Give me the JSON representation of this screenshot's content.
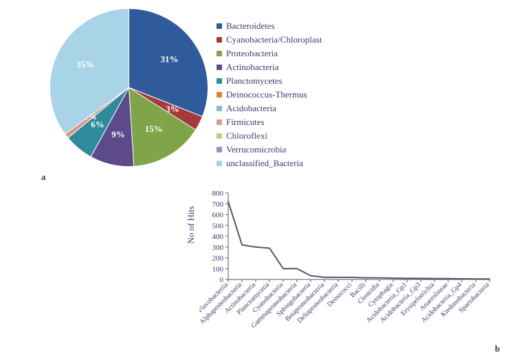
{
  "palette": {
    "text": "#3a3a6a",
    "background": "#ffffff",
    "axis": "#555566"
  },
  "panels": {
    "a": "a",
    "b": "b"
  },
  "pie": {
    "type": "pie",
    "center_label_font": 13,
    "label_color": "#ffffff",
    "slices": [
      {
        "name": "Bacteroidetes",
        "value": 31,
        "label": "31%",
        "color": "#2f5b9c"
      },
      {
        "name": "Cyanobacteria/Chloroplast",
        "value": 3,
        "label": "3%",
        "color": "#a43a3c"
      },
      {
        "name": "Proteobacteria",
        "value": 15,
        "label": "15%",
        "color": "#7fa44a"
      },
      {
        "name": "Actinobacteria",
        "value": 9,
        "label": "9%",
        "color": "#5c4a8a"
      },
      {
        "name": "Planctomycetes",
        "value": 6,
        "label": "6%",
        "color": "#2f8a9c"
      },
      {
        "name": "Firmicutes",
        "value": 1,
        "label": "1%",
        "color": "#d79a8a"
      },
      {
        "name": "unclassified_Bacteria",
        "value": 35,
        "label": "35%",
        "color": "#a9d3e6"
      }
    ],
    "legend": [
      {
        "label": "Bacteroidetes",
        "color": "#2f5b9c"
      },
      {
        "label": "Cyanobacteria/Chloroplast",
        "color": "#a43a3c"
      },
      {
        "label": "Proteobacteria",
        "color": "#7fa44a"
      },
      {
        "label": "Actinobacteria",
        "color": "#5c4a8a"
      },
      {
        "label": "Planctomycetes",
        "color": "#2f8a9c"
      },
      {
        "label": "Deinococcus-Thermus",
        "color": "#d9842e"
      },
      {
        "label": "Acidobacteria",
        "color": "#8fb7d6"
      },
      {
        "label": "Firmicutes",
        "color": "#d79a8a"
      },
      {
        "label": "Chloroflexi",
        "color": "#b9cf87"
      },
      {
        "label": "Verrucomicrobia",
        "color": "#9a8cc0"
      },
      {
        "label": "unclassified_Bacteria",
        "color": "#a9d3e6"
      }
    ]
  },
  "line": {
    "type": "line",
    "ylabel": "No of Hits",
    "ylim": [
      0,
      800
    ],
    "ytick_step": 100,
    "ytick_labels": [
      "0",
      "100",
      "200",
      "300",
      "400",
      "500",
      "600",
      "700",
      "800"
    ],
    "stroke": "#555566",
    "stroke_width": 2,
    "label_fontsize": 11,
    "categories": [
      "Flavobacteriia",
      "Alphaproteobacteria",
      "Actinobacteria",
      "Planctomycetia",
      "Cyanobacteria",
      "Gammaproteobacteria",
      "Sphingobacteria",
      "Betaproteobacteria",
      "Deltaproteobacteria",
      "Deinococci",
      "Bacilli",
      "Clostridia",
      "Cytophagia",
      "Acidobacteria_Gp1",
      "Acidobacteria_Gp3",
      "Erysipelotrichia",
      "Anaerolineae",
      "Acidobacteria_Gp4",
      "Ktedonobacteria",
      "Spartobacteria"
    ],
    "values": [
      720,
      320,
      300,
      290,
      100,
      100,
      35,
      20,
      20,
      20,
      15,
      15,
      12,
      10,
      10,
      8,
      8,
      6,
      5,
      5
    ]
  }
}
